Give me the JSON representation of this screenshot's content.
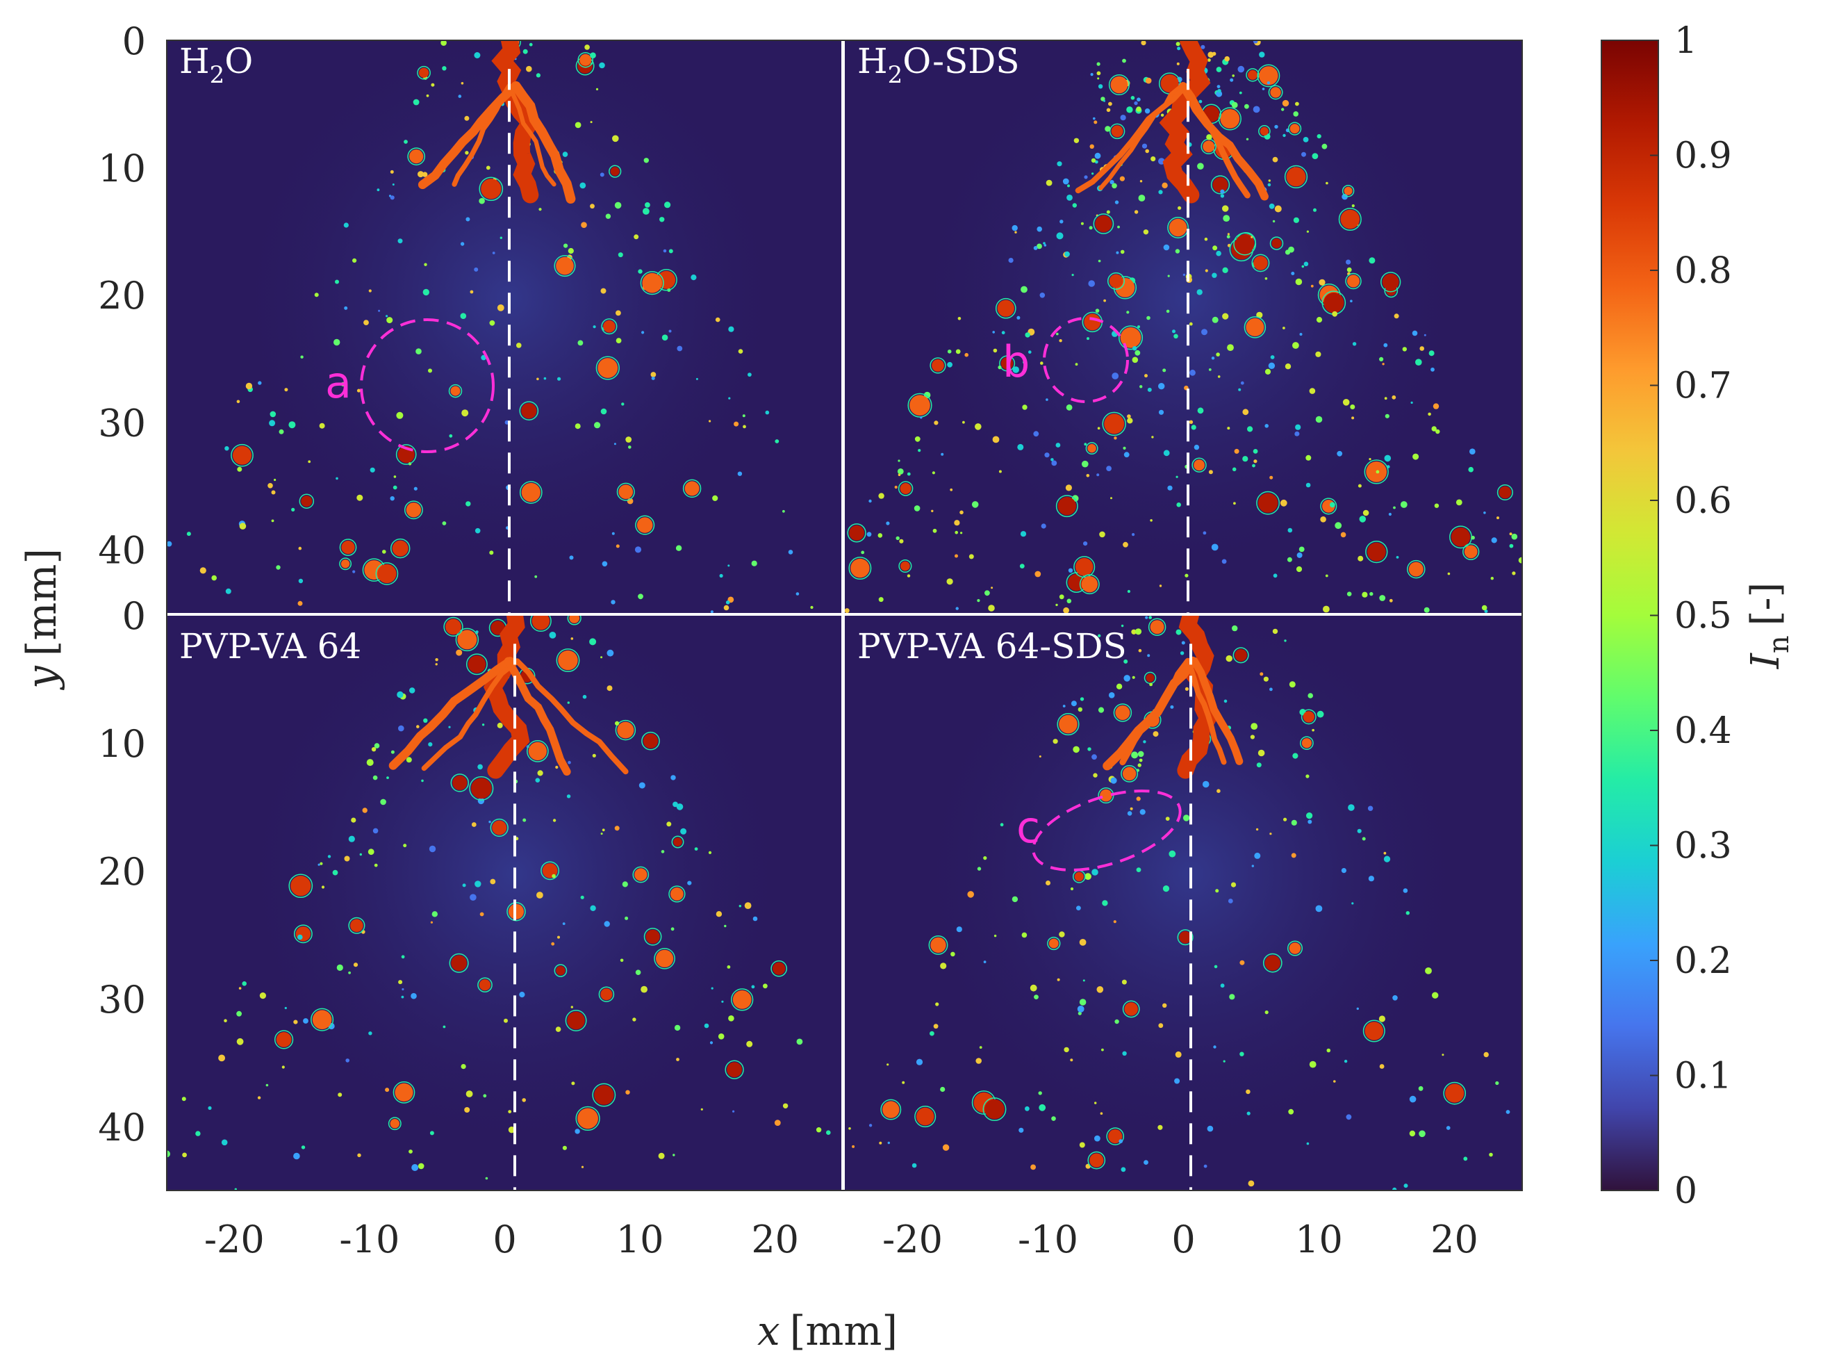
{
  "figure": {
    "panels": [
      {
        "title_main": "H",
        "title_sub": "2",
        "title_rest": "O",
        "annotation": "a"
      },
      {
        "title_main": "H",
        "title_sub": "2",
        "title_rest": "O-SDS",
        "annotation": "b"
      },
      {
        "title_main": "PVP-VA 64",
        "title_sub": "",
        "title_rest": "",
        "annotation": ""
      },
      {
        "title_main": "PVP-VA 64-SDS",
        "title_sub": "",
        "title_rest": "",
        "annotation": "c"
      }
    ],
    "x_axis": {
      "label_var": "x",
      "label_unit": "[mm]",
      "ticks": [
        "-20",
        "-10",
        "0",
        "10",
        "20"
      ],
      "range": [
        -25,
        25
      ]
    },
    "y_axis": {
      "label_var": "y",
      "label_unit": "[mm]",
      "ticks": [
        "0",
        "10",
        "20",
        "30",
        "40"
      ],
      "range": [
        0,
        45
      ]
    },
    "colorbar": {
      "label_var": "I",
      "label_sub": "n",
      "label_unit": "[-]",
      "ticks": [
        "0",
        "0.1",
        "0.2",
        "0.3",
        "0.4",
        "0.5",
        "0.6",
        "0.7",
        "0.8",
        "0.9",
        "1"
      ],
      "range": [
        0,
        1
      ],
      "colormap": "turbo",
      "colors": [
        "#30123b",
        "#4145ab",
        "#4675ed",
        "#39a2fc",
        "#1bcfd4",
        "#24eca6",
        "#61fc6c",
        "#a4fc3b",
        "#d1e834",
        "#f3c63a",
        "#fe9b2d",
        "#f36315",
        "#d93806",
        "#b11901",
        "#7a0402"
      ]
    },
    "background_color": "#2a1a5e",
    "annotation_color": "#ff2fd8"
  }
}
